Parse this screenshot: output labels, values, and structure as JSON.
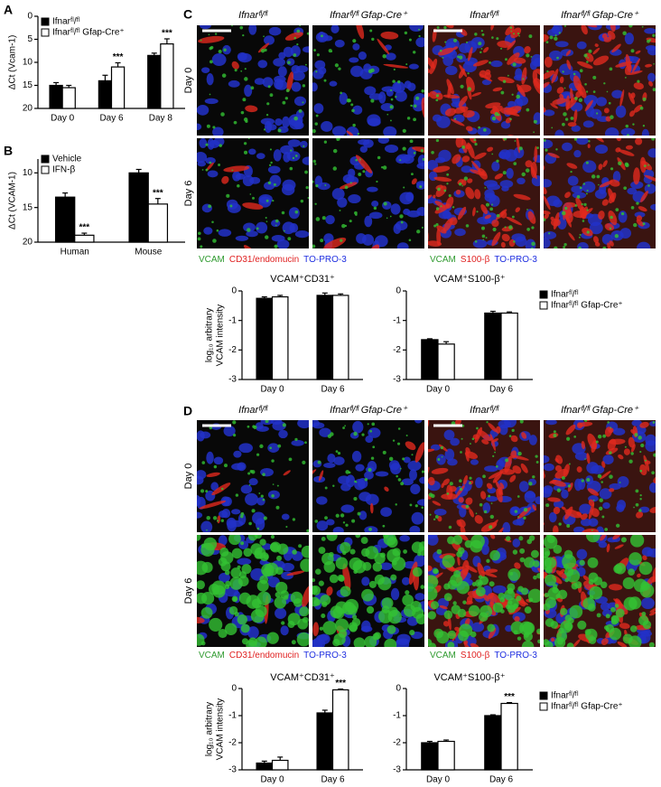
{
  "figure": {
    "panels": [
      {
        "letter": "A"
      },
      {
        "letter": "B"
      },
      {
        "letter": "C",
        "columns": [
          "Ifnarᶠˡ/ᶠˡ",
          "Ifnarᶠˡ/ᶠˡ Gfap-Cre⁺",
          "Ifnarᶠˡ/ᶠˡ",
          "Ifnarᶠˡ/ᶠˡ Gfap-Cre⁺"
        ],
        "rows": [
          "Day 0",
          "Day 6"
        ],
        "stains_left": [
          "VCAM",
          "CD31/endomucin",
          "TO-PRO-3"
        ],
        "stains_right": [
          "VCAM",
          "S100-β",
          "TO-PRO-3"
        ]
      },
      {
        "letter": "D",
        "columns": [
          "Ifnarᶠˡ/ᶠˡ",
          "Ifnarᶠˡ/ᶠˡ Gfap-Cre⁺",
          "Ifnarᶠˡ/ᶠˡ",
          "Ifnarᶠˡ/ᶠˡ Gfap-Cre⁺"
        ],
        "rows": [
          "Day 0",
          "Day 6"
        ],
        "stains_left": [
          "VCAM",
          "CD31/endomucin",
          "TO-PRO-3"
        ],
        "stains_right": [
          "VCAM",
          "S100-β",
          "TO-PRO-3"
        ]
      }
    ]
  },
  "chart_data": [
    {
      "type": "bar",
      "ylabel": [
        "ΔCt (Vcam-1)"
      ],
      "categories": [
        "Day 0",
        "Day 6",
        "Day 8"
      ],
      "ylim": [
        20,
        0
      ],
      "yticks": [
        0,
        5,
        10,
        15,
        20
      ],
      "legend": true,
      "series": [
        {
          "name": "Ifnarᶠˡ/ᶠˡ",
          "color": "#000000",
          "values": [
            15,
            14,
            8.5
          ],
          "errors": [
            0.6,
            1.2,
            0.5
          ],
          "significance": [
            null,
            null,
            null
          ]
        },
        {
          "name": "Ifnarᶠˡ/ᶠˡ Gfap-Cre⁺",
          "color": "#ffffff",
          "values": [
            15.5,
            11,
            6
          ],
          "errors": [
            0.5,
            0.9,
            1.1
          ],
          "significance": [
            null,
            "***",
            "***"
          ]
        }
      ]
    },
    {
      "type": "bar",
      "ylabel": [
        "ΔCt (VCAM-1)"
      ],
      "categories": [
        "Human",
        "Mouse"
      ],
      "ylim": [
        20,
        8
      ],
      "yticks": [
        10,
        15,
        20
      ],
      "legend": true,
      "series": [
        {
          "name": "Vehicle",
          "color": "#000000",
          "values": [
            13.5,
            10
          ],
          "errors": [
            0.6,
            0.5
          ],
          "significance": [
            null,
            null
          ]
        },
        {
          "name": "IFN-β",
          "color": "#ffffff",
          "values": [
            19,
            14.5
          ],
          "errors": [
            0.3,
            0.8
          ],
          "significance": [
            "***",
            "***"
          ]
        }
      ]
    },
    {
      "type": "bar",
      "title": "VCAM⁺CD31⁺",
      "ylabel": [
        "log₁₀ arbitrary",
        "VCAM intensity"
      ],
      "categories": [
        "Day 0",
        "Day 6"
      ],
      "ylim": [
        -3,
        0
      ],
      "yticks": [
        -3,
        -2,
        -1,
        0
      ],
      "legend": false,
      "series": [
        {
          "color": "#000000",
          "values": [
            -0.25,
            -0.15
          ],
          "errors": [
            0.05,
            0.08
          ],
          "significance": [
            null,
            null
          ]
        },
        {
          "color": "#ffffff",
          "values": [
            -0.2,
            -0.15
          ],
          "errors": [
            0.05,
            0.05
          ],
          "significance": [
            null,
            null
          ]
        }
      ]
    },
    {
      "type": "bar",
      "title": "VCAM⁺S100-β⁺",
      "categories": [
        "Day 0",
        "Day 6"
      ],
      "ylim": [
        -3,
        0
      ],
      "yticks": [
        -3,
        -2,
        -1,
        0
      ],
      "legend": true,
      "series": [
        {
          "name": "Ifnarᶠˡ/ᶠˡ",
          "color": "#000000",
          "values": [
            -1.65,
            -0.75
          ],
          "errors": [
            0.03,
            0.06
          ],
          "significance": [
            null,
            null
          ]
        },
        {
          "name": "Ifnarᶠˡ/ᶠˡ Gfap-Cre⁺",
          "color": "#ffffff",
          "values": [
            -1.8,
            -0.75
          ],
          "errors": [
            0.08,
            0.04
          ],
          "significance": [
            null,
            null
          ]
        }
      ]
    },
    {
      "type": "bar",
      "title": "VCAM⁺CD31⁺",
      "ylabel": [
        "log₁₀ arbitrary",
        "VCAM intensity"
      ],
      "categories": [
        "Day 0",
        "Day 6"
      ],
      "ylim": [
        -3,
        0
      ],
      "yticks": [
        -3,
        -2,
        -1,
        0
      ],
      "legend": false,
      "series": [
        {
          "color": "#000000",
          "values": [
            -2.75,
            -0.9
          ],
          "errors": [
            0.07,
            0.1
          ],
          "significance": [
            null,
            null
          ]
        },
        {
          "color": "#ffffff",
          "values": [
            -2.65,
            -0.05
          ],
          "errors": [
            0.12,
            0.03
          ],
          "significance": [
            null,
            "***"
          ]
        }
      ]
    },
    {
      "type": "bar",
      "title": "VCAM⁺S100-β⁺",
      "categories": [
        "Day 0",
        "Day 6"
      ],
      "ylim": [
        -3,
        0
      ],
      "yticks": [
        -3,
        -2,
        -1,
        0
      ],
      "legend": true,
      "series": [
        {
          "name": "Ifnarᶠˡ/ᶠˡ",
          "color": "#000000",
          "values": [
            -2.0,
            -1.0
          ],
          "errors": [
            0.05,
            0.03
          ],
          "significance": [
            null,
            null
          ]
        },
        {
          "name": "Ifnarᶠˡ/ᶠˡ Gfap-Cre⁺",
          "color": "#ffffff",
          "values": [
            -1.95,
            -0.55
          ],
          "errors": [
            0.05,
            0.03
          ],
          "significance": [
            null,
            "***"
          ]
        }
      ]
    }
  ]
}
